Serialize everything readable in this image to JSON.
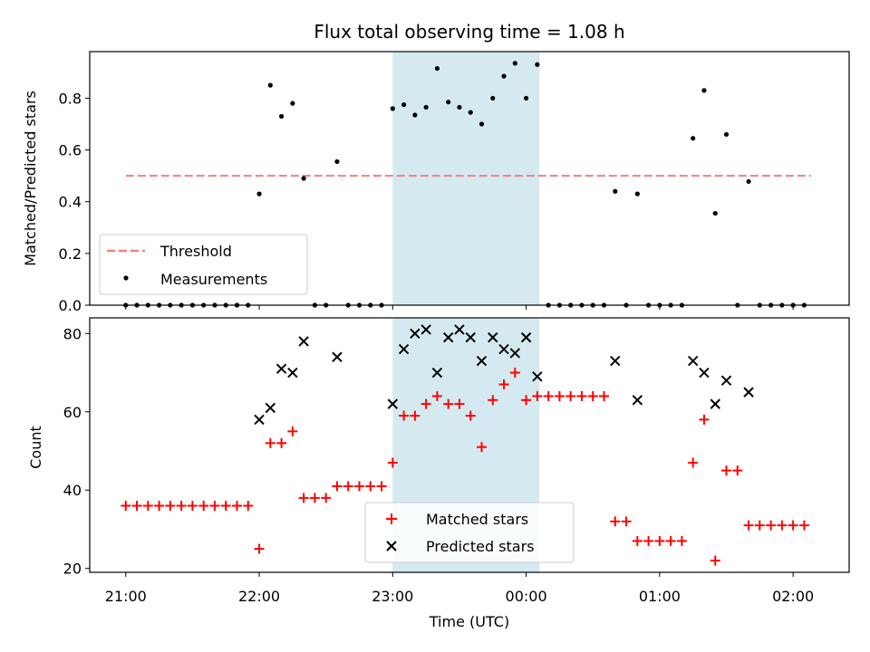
{
  "chart_data": [
    {
      "type": "scatter",
      "title": "Flux total observing time = 1.08 h",
      "xlabel": "",
      "ylabel": "Matched/Predicted stars",
      "ylim": [
        0,
        0.98
      ],
      "yticks": [
        "0.0",
        "0.2",
        "0.4",
        "0.6",
        "0.8"
      ],
      "yticks_values": [
        0,
        0.2,
        0.4,
        0.6,
        0.8
      ],
      "x_range_hours": [
        20.73,
        26.42
      ],
      "highlight_span": {
        "start": "23:00",
        "end": "00:06",
        "color": "#d5eaf0"
      },
      "threshold": {
        "name": "Threshold",
        "value": 0.5,
        "x_start": "21:00",
        "x_end": "02:08",
        "color": "#f08080"
      },
      "legend": {
        "placement": "lower-left",
        "entries": [
          "Threshold",
          "Measurements"
        ]
      },
      "series": [
        {
          "name": "Measurements",
          "color": "#000000",
          "points": [
            [
              "21:00",
              0
            ],
            [
              "21:05",
              0
            ],
            [
              "21:10",
              0
            ],
            [
              "21:15",
              0
            ],
            [
              "21:20",
              0
            ],
            [
              "21:25",
              0
            ],
            [
              "21:30",
              0
            ],
            [
              "21:35",
              0
            ],
            [
              "21:40",
              0
            ],
            [
              "21:45",
              0
            ],
            [
              "21:50",
              0
            ],
            [
              "21:55",
              0
            ],
            [
              "22:00",
              0.43
            ],
            [
              "22:05",
              0.85
            ],
            [
              "22:10",
              0.73
            ],
            [
              "22:15",
              0.78
            ],
            [
              "22:20",
              0.49
            ],
            [
              "22:25",
              0
            ],
            [
              "22:30",
              0
            ],
            [
              "22:35",
              0.555
            ],
            [
              "22:40",
              0
            ],
            [
              "22:45",
              0
            ],
            [
              "22:50",
              0
            ],
            [
              "22:55",
              0
            ],
            [
              "23:00",
              0.76
            ],
            [
              "23:05",
              0.775
            ],
            [
              "23:10",
              0.735
            ],
            [
              "23:15",
              0.765
            ],
            [
              "23:20",
              0.915
            ],
            [
              "23:25",
              0.785
            ],
            [
              "23:30",
              0.765
            ],
            [
              "23:35",
              0.745
            ],
            [
              "23:40",
              0.7
            ],
            [
              "23:45",
              0.8
            ],
            [
              "23:50",
              0.885
            ],
            [
              "23:55",
              0.935
            ],
            [
              "00:00",
              0.8
            ],
            [
              "00:05",
              0.93
            ],
            [
              "00:10",
              0
            ],
            [
              "00:15",
              0
            ],
            [
              "00:20",
              0
            ],
            [
              "00:25",
              0
            ],
            [
              "00:30",
              0
            ],
            [
              "00:35",
              0
            ],
            [
              "00:40",
              0.44
            ],
            [
              "00:45",
              0
            ],
            [
              "00:50",
              0.43
            ],
            [
              "00:55",
              0
            ],
            [
              "01:00",
              0
            ],
            [
              "01:05",
              0
            ],
            [
              "01:10",
              0
            ],
            [
              "01:15",
              0.645
            ],
            [
              "01:20",
              0.83
            ],
            [
              "01:25",
              0.355
            ],
            [
              "01:30",
              0.66
            ],
            [
              "01:35",
              0
            ],
            [
              "01:40",
              0.478
            ],
            [
              "01:45",
              0
            ],
            [
              "01:50",
              0
            ],
            [
              "01:55",
              0
            ],
            [
              "02:00",
              0
            ],
            [
              "02:05",
              0
            ]
          ]
        }
      ]
    },
    {
      "type": "scatter",
      "title": "",
      "xlabel": "Time (UTC)",
      "ylabel": "Count",
      "ylim": [
        19,
        84
      ],
      "yticks": [
        "20",
        "40",
        "60",
        "80"
      ],
      "yticks_values": [
        20,
        40,
        60,
        80
      ],
      "xticks": [
        "21:00",
        "22:00",
        "23:00",
        "00:00",
        "01:00",
        "02:00"
      ],
      "xticks_values": [
        21,
        22,
        23,
        24,
        25,
        26
      ],
      "x_range_hours": [
        20.73,
        26.42
      ],
      "highlight_span": {
        "start": "23:00",
        "end": "00:06",
        "color": "#d5eaf0"
      },
      "legend": {
        "placement": "lower-center",
        "entries": [
          "Matched stars",
          "Predicted stars"
        ]
      },
      "series": [
        {
          "name": "Matched stars",
          "marker": "plus",
          "color": "#ff0000",
          "points": [
            [
              "21:00",
              36
            ],
            [
              "21:05",
              36
            ],
            [
              "21:10",
              36
            ],
            [
              "21:15",
              36
            ],
            [
              "21:20",
              36
            ],
            [
              "21:25",
              36
            ],
            [
              "21:30",
              36
            ],
            [
              "21:35",
              36
            ],
            [
              "21:40",
              36
            ],
            [
              "21:45",
              36
            ],
            [
              "21:50",
              36
            ],
            [
              "21:55",
              36
            ],
            [
              "22:00",
              25
            ],
            [
              "22:05",
              52
            ],
            [
              "22:10",
              52
            ],
            [
              "22:15",
              55
            ],
            [
              "22:20",
              38
            ],
            [
              "22:25",
              38
            ],
            [
              "22:30",
              38
            ],
            [
              "22:35",
              41
            ],
            [
              "22:40",
              41
            ],
            [
              "22:45",
              41
            ],
            [
              "22:50",
              41
            ],
            [
              "22:55",
              41
            ],
            [
              "23:00",
              47
            ],
            [
              "23:05",
              59
            ],
            [
              "23:10",
              59
            ],
            [
              "23:15",
              62
            ],
            [
              "23:20",
              64
            ],
            [
              "23:25",
              62
            ],
            [
              "23:30",
              62
            ],
            [
              "23:35",
              59
            ],
            [
              "23:40",
              51
            ],
            [
              "23:45",
              63
            ],
            [
              "23:50",
              67
            ],
            [
              "23:55",
              70
            ],
            [
              "00:00",
              63
            ],
            [
              "00:05",
              64
            ],
            [
              "00:10",
              64
            ],
            [
              "00:15",
              64
            ],
            [
              "00:20",
              64
            ],
            [
              "00:25",
              64
            ],
            [
              "00:30",
              64
            ],
            [
              "00:35",
              64
            ],
            [
              "00:40",
              32
            ],
            [
              "00:45",
              32
            ],
            [
              "00:50",
              27
            ],
            [
              "00:55",
              27
            ],
            [
              "01:00",
              27
            ],
            [
              "01:05",
              27
            ],
            [
              "01:10",
              27
            ],
            [
              "01:15",
              47
            ],
            [
              "01:20",
              58
            ],
            [
              "01:25",
              22
            ],
            [
              "01:30",
              45
            ],
            [
              "01:35",
              45
            ],
            [
              "01:40",
              31
            ],
            [
              "01:45",
              31
            ],
            [
              "01:50",
              31
            ],
            [
              "01:55",
              31
            ],
            [
              "02:00",
              31
            ],
            [
              "02:05",
              31
            ]
          ]
        },
        {
          "name": "Predicted stars",
          "marker": "x",
          "color": "#000000",
          "points": [
            [
              "22:00",
              58
            ],
            [
              "22:05",
              61
            ],
            [
              "22:10",
              71
            ],
            [
              "22:15",
              70
            ],
            [
              "22:20",
              78
            ],
            [
              "22:35",
              74
            ],
            [
              "23:00",
              62
            ],
            [
              "23:05",
              76
            ],
            [
              "23:10",
              80
            ],
            [
              "23:15",
              81
            ],
            [
              "23:20",
              70
            ],
            [
              "23:25",
              79
            ],
            [
              "23:30",
              81
            ],
            [
              "23:35",
              79
            ],
            [
              "23:40",
              73
            ],
            [
              "23:45",
              79
            ],
            [
              "23:50",
              76
            ],
            [
              "23:55",
              75
            ],
            [
              "00:00",
              79
            ],
            [
              "00:05",
              69
            ],
            [
              "00:40",
              73
            ],
            [
              "00:50",
              63
            ],
            [
              "01:15",
              73
            ],
            [
              "01:20",
              70
            ],
            [
              "01:25",
              62
            ],
            [
              "01:30",
              68
            ],
            [
              "01:40",
              65
            ]
          ]
        }
      ]
    }
  ]
}
